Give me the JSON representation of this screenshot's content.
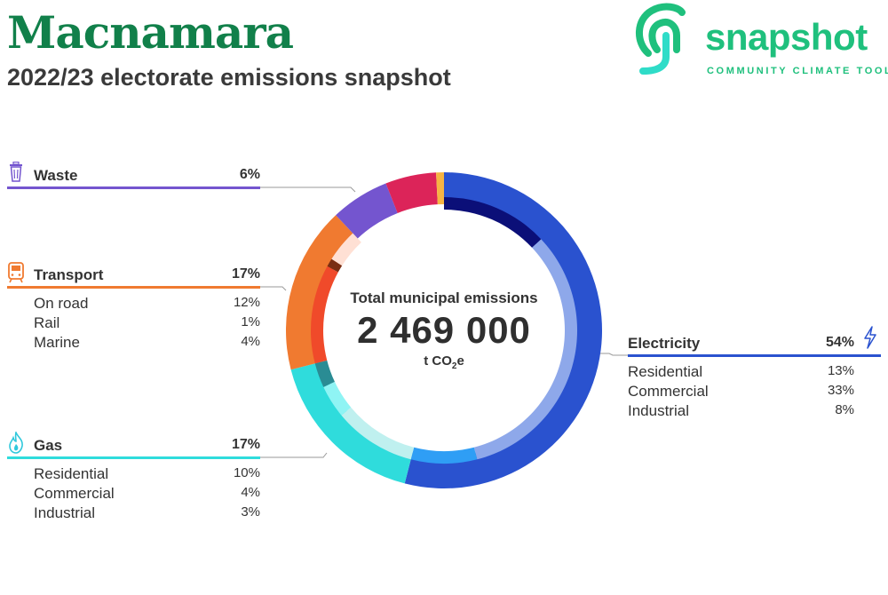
{
  "header": {
    "title": "Macnamara",
    "subtitle": "2022/23 electorate emissions snapshot"
  },
  "logo": {
    "word": "snapshot",
    "tagline": "COMMUNITY CLIMATE TOOL",
    "color": "#1fc07d"
  },
  "center": {
    "label": "Total municipal emissions",
    "value": "2 469 000",
    "unit_prefix": "t CO",
    "unit_sub": "2",
    "unit_suffix": "e"
  },
  "chart_data": {
    "type": "pie",
    "donut": true,
    "start_angle_deg": 0,
    "direction": "clockwise",
    "categories": [
      {
        "name": "Electricity",
        "percent": "54%",
        "value": 54,
        "color": "#2a52cf",
        "icon": "lightning-icon",
        "subcategories": [
          {
            "name": "Residential",
            "percent": "13%",
            "value": 13,
            "color": "#0b0f78"
          },
          {
            "name": "Commercial",
            "percent": "33%",
            "value": 33,
            "color": "#8ea8ea"
          },
          {
            "name": "Industrial",
            "percent": "8%",
            "value": 8,
            "color": "#2f9ef5"
          }
        ]
      },
      {
        "name": "Gas",
        "percent": "17%",
        "value": 17,
        "color": "#2fdcdc",
        "icon": "flame-icon",
        "subcategories": [
          {
            "name": "Residential",
            "percent": "10%",
            "value": 10,
            "color": "#bff0ef"
          },
          {
            "name": "Commercial",
            "percent": "4%",
            "value": 4,
            "color": "#8ff4f4"
          },
          {
            "name": "Industrial",
            "percent": "3%",
            "value": 3,
            "color": "#2a8c94"
          }
        ]
      },
      {
        "name": "Transport",
        "percent": "17%",
        "value": 17,
        "color": "#f07a30",
        "icon": "train-icon",
        "subcategories": [
          {
            "name": "On road",
            "percent": "12%",
            "value": 12,
            "color": "#f04a2a"
          },
          {
            "name": "Rail",
            "percent": "1%",
            "value": 1,
            "color": "#7a2e12"
          },
          {
            "name": "Marine",
            "percent": "4%",
            "value": 4,
            "color": "#ffe0d4"
          }
        ]
      },
      {
        "name": "Waste",
        "percent": "6%",
        "value": 6,
        "color": "#7455cf",
        "icon": "trash-icon",
        "subcategories": []
      },
      {
        "name": "",
        "percent": "",
        "value": 5.2,
        "color": "#dc2459",
        "subcategories": []
      },
      {
        "name": "",
        "percent": "",
        "value": 0.8,
        "color": "#f6b443",
        "subcategories": []
      }
    ]
  }
}
